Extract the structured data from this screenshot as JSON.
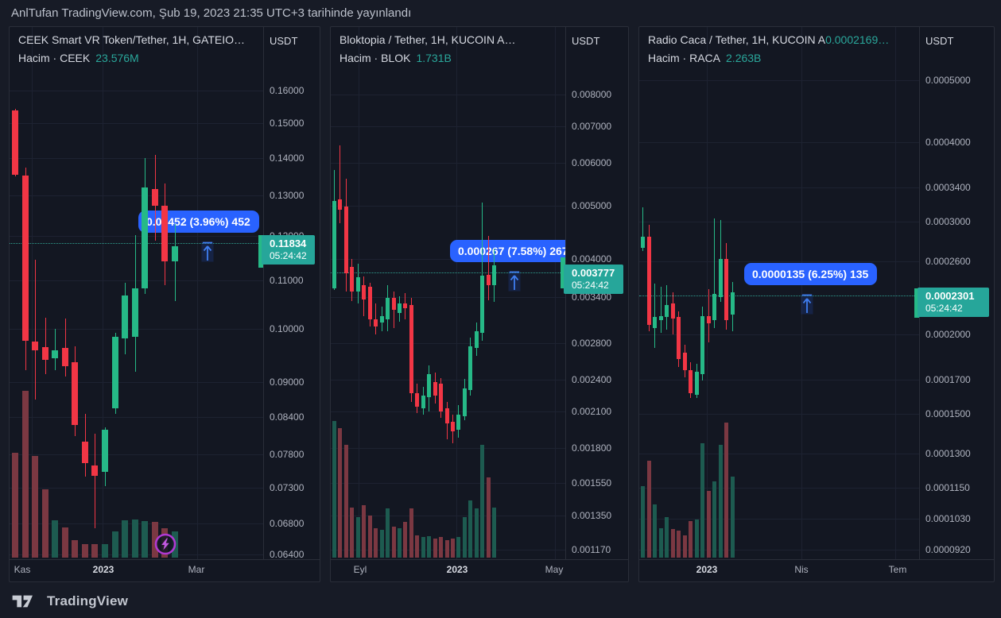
{
  "header": {
    "publish_line": "AnlTufan TradingView.com, Şub 19, 2023 21:35 UTC+3 tarihinde yayınlandı"
  },
  "footer": {
    "brand": "TradingView"
  },
  "colors": {
    "background": "#131722",
    "outer": "#171b26",
    "grid": "#1d2231",
    "border": "#2a2e39",
    "up": "#26b987",
    "down": "#f23645",
    "volume_up": "#1d5b50",
    "volume_down": "#7b3842",
    "accent_blue": "#2962ff",
    "label_green": "#26a69a",
    "teal_text": "#2aa79b",
    "lightning_purple": "#b039d3"
  },
  "chart_data": [
    {
      "type": "candlestick+volume",
      "title": "CEEK Smart VR Token/Tether, 1H, GATEIO…",
      "title_value_teal": "",
      "volume_label": "Hacim · CEEK",
      "volume_value": "23.576M",
      "quote_currency": "USDT",
      "last_price": 0.11834,
      "last_price_label": "0.11834",
      "countdown": "05:24:42",
      "change_badge": "0.00452 (3.96%) 452",
      "y_scale": "log",
      "y_ticks": [
        "0.16000",
        "0.15000",
        "0.14000",
        "0.13000",
        "0.12000",
        "0.11000",
        "0.10000",
        "0.09000",
        "0.08400",
        "0.07800",
        "0.07300",
        "0.06800",
        "0.06400"
      ],
      "x_ticks": [
        "Kas",
        "2023",
        "Mar"
      ],
      "candles": [
        [
          0.1538,
          0.1543,
          0.135,
          0.1355
        ],
        [
          0.1353,
          0.1375,
          0.0921,
          0.0976
        ],
        [
          0.0975,
          0.1145,
          0.0869,
          0.0958
        ],
        [
          0.0964,
          0.1021,
          0.0914,
          0.094
        ],
        [
          0.0943,
          0.1,
          0.0921,
          0.0958
        ],
        [
          0.0962,
          0.102,
          0.0909,
          0.0928
        ],
        [
          0.0935,
          0.0965,
          0.0808,
          0.0827
        ],
        [
          0.08,
          0.0845,
          0.0746,
          0.0766
        ],
        [
          0.0763,
          0.0812,
          0.0674,
          0.0748
        ],
        [
          0.0753,
          0.0822,
          0.0733,
          0.0819
        ],
        [
          0.0854,
          0.0991,
          0.0845,
          0.0983
        ],
        [
          0.098,
          0.1094,
          0.095,
          0.1068
        ],
        [
          0.0983,
          0.1202,
          0.0918,
          0.1082
        ],
        [
          0.1082,
          0.1401,
          0.1071,
          0.1321
        ],
        [
          0.1317,
          0.141,
          0.1189,
          0.1274
        ],
        [
          0.1274,
          0.1331,
          0.109,
          0.1141
        ],
        [
          0.1141,
          0.123,
          0.1055,
          0.1177
        ]
      ],
      "volumes": [
        132,
        210,
        128,
        86,
        47,
        38,
        22,
        17,
        17,
        17,
        33,
        47,
        48,
        46,
        45,
        37,
        33
      ],
      "edge_candle": [
        0.1128,
        0.1202
      ],
      "has_lightning_marker": true
    },
    {
      "type": "candlestick+volume",
      "title": "Bloktopia / Tether, 1H, KUCOIN  A…",
      "title_value_teal": "",
      "volume_label": "Hacim · BLOK",
      "volume_value": "1.731B",
      "quote_currency": "USDT",
      "last_price": 0.003777,
      "last_price_label": "0.003777",
      "countdown": "05:24:42",
      "change_badge": "0.000267 (7.58%) 267",
      "y_scale": "log",
      "y_ticks": [
        "0.008000",
        "0.007000",
        "0.006000",
        "0.005000",
        "0.004000",
        "0.003400",
        "0.002800",
        "0.002400",
        "0.002100",
        "0.001800",
        "0.001550",
        "0.001350",
        "0.001170"
      ],
      "x_ticks": [
        "Eyl",
        "2023",
        "May"
      ],
      "candles": [
        [
          0.003528,
          0.005816,
          0.0035,
          0.005103
        ],
        [
          0.005137,
          0.006453,
          0.004645,
          0.004917
        ],
        [
          0.004983,
          0.005613,
          0.003481,
          0.003762
        ],
        [
          0.003864,
          0.003996,
          0.003344,
          0.003481
        ],
        [
          0.003481,
          0.003917,
          0.00331,
          0.003699
        ],
        [
          0.003577,
          0.003712,
          0.003137,
          0.003367
        ],
        [
          0.003553,
          0.003613,
          0.003002,
          0.003095
        ],
        [
          0.003095,
          0.00331,
          0.002903,
          0.003002
        ],
        [
          0.003054,
          0.003266,
          0.002942,
          0.003137
        ],
        [
          0.003095,
          0.003577,
          0.002942,
          0.003389
        ],
        [
          0.003389,
          0.003481,
          0.002982,
          0.003222
        ],
        [
          0.003179,
          0.003412,
          0.003064,
          0.00331
        ],
        [
          0.00331,
          0.003458,
          0.003095,
          0.003244
        ],
        [
          0.003288,
          0.003389,
          0.002184,
          0.002267
        ],
        [
          0.002267,
          0.00236,
          0.002084,
          0.002141
        ],
        [
          0.002127,
          0.002328,
          0.00207,
          0.002244
        ],
        [
          0.002229,
          0.002548,
          0.002098,
          0.002455
        ],
        [
          0.002376,
          0.002474,
          0.00217,
          0.002244
        ],
        [
          0.00236,
          0.002417,
          0.002042,
          0.002098
        ],
        [
          0.002127,
          0.002184,
          0.001866,
          0.001996
        ],
        [
          0.002009,
          0.00207,
          0.001835,
          0.00193
        ],
        [
          0.001943,
          0.002155,
          0.001879,
          0.00207
        ],
        [
          0.002056,
          0.002409,
          0.002022,
          0.002313
        ],
        [
          0.002298,
          0.002861,
          0.002244,
          0.002758
        ],
        [
          0.00274,
          0.00305,
          0.002649,
          0.00294
        ],
        [
          0.002921,
          0.005069,
          0.002824,
          0.003724
        ],
        [
          0.003737,
          0.004405,
          0.003355,
          0.003577
        ],
        [
          0.003577,
          0.004177,
          0.003333,
          0.00389
        ]
      ],
      "volumes": [
        172,
        163,
        142,
        63,
        51,
        66,
        53,
        37,
        35,
        62,
        39,
        37,
        45,
        62,
        28,
        26,
        27,
        24,
        26,
        22,
        24,
        26,
        51,
        72,
        62,
        142,
        101,
        63
      ],
      "edge_candle": [
        0.003528,
        0.004022
      ],
      "has_lightning_marker": false
    },
    {
      "type": "candlestick+volume",
      "title": "Radio Caca / Tether, 1H, KUCOIN  A",
      "title_value_teal": "0.0002169…",
      "volume_label": "Hacim · RACA",
      "volume_value": "2.263B",
      "quote_currency": "USDT",
      "last_price": 0.0002301,
      "last_price_label": "0.0002301",
      "countdown": "05:24:42",
      "change_badge": "0.0000135 (6.25%) 135",
      "y_scale": "log",
      "y_ticks": [
        "0.0005000",
        "0.0004000",
        "0.0003400",
        "0.0003000",
        "0.0002600",
        "0.0002000",
        "0.0001700",
        "0.0001500",
        "0.0001300",
        "0.0001150",
        "0.0001030",
        "0.0000920"
      ],
      "x_ticks": [
        "2023",
        "Nis",
        "Tem"
      ],
      "candles": [
        [
          0.0002732,
          0.0003158,
          0.0002701,
          0.0002844
        ],
        [
          0.0002844,
          0.0002967,
          0.0002023,
          0.000207
        ],
        [
          0.0002047,
          0.0002402,
          0.0001905,
          0.000213
        ],
        [
          0.0002106,
          0.0002374,
          0.0002011,
          0.0002136
        ],
        [
          0.000213,
          0.0002388,
          0.0002035,
          0.0002223
        ],
        [
          0.0002236,
          0.0002327,
          0.0002,
          0.0002118
        ],
        [
          0.000213,
          0.0002173,
          0.0001778,
          0.000183
        ],
        [
          0.0001872,
          0.0001927,
          0.0001712,
          0.0001757
        ],
        [
          0.0001757,
          0.0001808,
          0.0001589,
          0.0001616
        ],
        [
          0.0001607,
          0.0001798,
          0.0001589,
          0.0001747
        ],
        [
          0.0001732,
          0.0002211,
          0.0001693,
          0.0002136
        ],
        [
          0.0002136,
          0.0002354,
          0.0001944,
          0.0002082
        ],
        [
          0.0002106,
          0.0003034,
          0.0002047,
          0.0002313
        ],
        [
          0.0002287,
          0.0003017,
          0.0002248,
          0.0002625
        ],
        [
          0.0002625,
          0.000278,
          0.0002035,
          0.0002106
        ],
        [
          0.0002148,
          0.0002416,
          0.0002023,
          0.0002327
        ]
      ],
      "volumes": [
        90,
        122,
        67,
        37,
        51,
        36,
        34,
        28,
        46,
        48,
        144,
        84,
        96,
        142,
        170,
        102
      ],
      "edge_candle": [
        0.0002124,
        0.0002361
      ],
      "has_lightning_marker": false
    }
  ]
}
